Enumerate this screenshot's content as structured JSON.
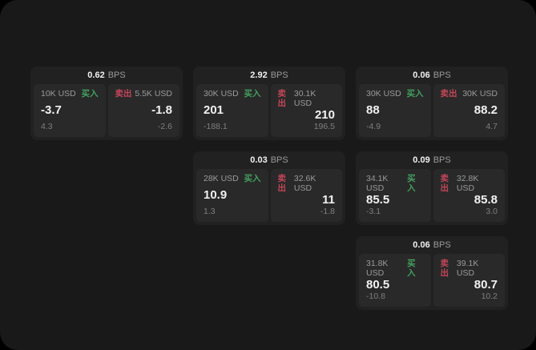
{
  "colors": {
    "surface": "#191919",
    "card": "#212121",
    "panel": "#292929",
    "buy_green": "#44a05e",
    "sell_red": "#c24659",
    "text_primary": "#f2f2f2",
    "text_secondary": "#9b9b9b",
    "text_muted": "#7f7f7f"
  },
  "labels": {
    "bps": "BPS",
    "buy": "买入",
    "sell": "卖出"
  },
  "cards": [
    {
      "bps": "0.62",
      "buy": {
        "amount": "10K USD",
        "price": "-3.7",
        "delta": "4.3"
      },
      "sell": {
        "amount": "5.5K USD",
        "price": "-1.8",
        "delta": "-2.6"
      }
    },
    {
      "bps": "2.92",
      "buy": {
        "amount": "30K USD",
        "price": "201",
        "delta": "-188.1"
      },
      "sell": {
        "amount": "30.1K USD",
        "price": "210",
        "delta": "196.5"
      }
    },
    {
      "bps": "0.06",
      "buy": {
        "amount": "30K USD",
        "price": "88",
        "delta": "-4.9"
      },
      "sell": {
        "amount": "30K USD",
        "price": "88.2",
        "delta": "4.7"
      }
    },
    {
      "bps": "0.03",
      "buy": {
        "amount": "28K USD",
        "price": "10.9",
        "delta": "1.3"
      },
      "sell": {
        "amount": "32.6K USD",
        "price": "11",
        "delta": "-1.8"
      }
    },
    {
      "bps": "0.09",
      "buy": {
        "amount": "34.1K USD",
        "price": "85.5",
        "delta": "-3.1"
      },
      "sell": {
        "amount": "32.8K USD",
        "price": "85.8",
        "delta": "3.0"
      }
    },
    {
      "bps": "0.06",
      "buy": {
        "amount": "31.8K USD",
        "price": "80.5",
        "delta": "-10.8"
      },
      "sell": {
        "amount": "39.1K USD",
        "price": "80.7",
        "delta": "10.2"
      }
    }
  ]
}
